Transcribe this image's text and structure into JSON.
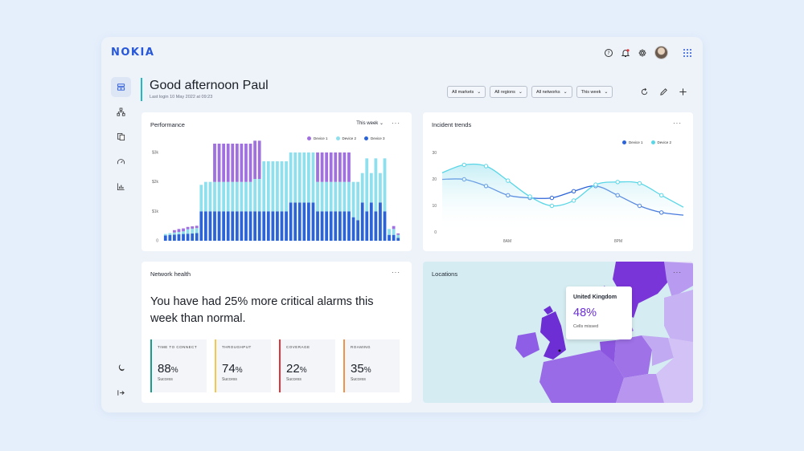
{
  "brand": {
    "logo_text": "NOKIA",
    "accent": "#2757d9"
  },
  "greeting": {
    "title": "Good afternoon Paul",
    "last_login": "Last login 10 May 2022 at 09:23"
  },
  "filters": [
    {
      "label": "All markets"
    },
    {
      "label": "All regions"
    },
    {
      "label": "All networks"
    },
    {
      "label": "This week"
    }
  ],
  "topbar_icons": [
    "help-icon",
    "notification-bell-icon",
    "settings-gear-icon",
    "user-avatar",
    "apps-grid-icon"
  ],
  "rail_icons": [
    "dashboard-icon",
    "topology-icon",
    "documents-icon",
    "speedometer-icon",
    "analytics-icon",
    "dark-mode-icon",
    "collapse-sidebar-icon"
  ],
  "performance": {
    "title": "Performance",
    "range_label": "This week",
    "more": "···",
    "legend": [
      {
        "label": "Device 1",
        "color": "#a070e0"
      },
      {
        "label": "Device 2",
        "color": "#8fe0ee"
      },
      {
        "label": "Device 3",
        "color": "#2b63d8"
      }
    ]
  },
  "incident": {
    "title": "Incident trends",
    "more": "···",
    "legend": [
      {
        "label": "Device 1",
        "color": "#2b63d8"
      },
      {
        "label": "Device 2",
        "color": "#5ad6e6"
      }
    ]
  },
  "network_health": {
    "title": "Network health",
    "more": "···",
    "message": "You have had 25% more critical alarms this week than normal.",
    "metrics": [
      {
        "label": "TIME TO CONNECT",
        "value": "88",
        "unit": "%",
        "sub": "Success",
        "color": "#1a9e8c"
      },
      {
        "label": "THROUGHPUT",
        "value": "74",
        "unit": "%",
        "sub": "Success",
        "color": "#f2c94c"
      },
      {
        "label": "COVERAGE",
        "value": "22",
        "unit": "%",
        "sub": "Success",
        "color": "#e0353a"
      },
      {
        "label": "ROAMING",
        "value": "35",
        "unit": "%",
        "sub": "Success",
        "color": "#f0924a"
      }
    ]
  },
  "locations": {
    "title": "Locations",
    "more": "···",
    "tooltip": {
      "country": "United Kingdom",
      "value": "48%",
      "sub": "Cells missed"
    }
  },
  "chart_data": [
    {
      "type": "bar",
      "title": "Performance",
      "stacked": true,
      "yticks": [
        "0",
        "$1k",
        "$2k",
        "$3k"
      ],
      "ylim": [
        0,
        3000
      ],
      "series": [
        {
          "name": "Device 3",
          "color": "#2b63d8",
          "values": [
            180,
            200,
            210,
            220,
            230,
            240,
            250,
            260,
            1000,
            1000,
            1000,
            1000,
            1000,
            1000,
            1000,
            1000,
            1000,
            1000,
            1000,
            1000,
            1000,
            1000,
            1000,
            1000,
            1000,
            1000,
            1000,
            1000,
            1300,
            1300,
            1300,
            1300,
            1300,
            1300,
            1000,
            1000,
            1000,
            1000,
            1000,
            1000,
            1000,
            1000,
            800,
            700,
            1300,
            1000,
            1300,
            1000,
            1300,
            1000,
            200,
            200,
            100
          ]
        },
        {
          "name": "Device 2",
          "color": "#8fe0ee",
          "values": [
            50,
            60,
            70,
            80,
            90,
            150,
            160,
            170,
            900,
            1000,
            1000,
            1000,
            1000,
            1000,
            1000,
            1000,
            1000,
            1000,
            1000,
            1000,
            1100,
            1100,
            1700,
            1700,
            1700,
            1700,
            1700,
            1700,
            1700,
            1700,
            1700,
            1700,
            1700,
            1700,
            1000,
            1000,
            1000,
            1000,
            1000,
            1000,
            1000,
            1000,
            1200,
            1300,
            1000,
            1800,
            1000,
            1800,
            1000,
            1800,
            200,
            200,
            100
          ]
        },
        {
          "name": "Device 1",
          "color": "#a070e0",
          "values": [
            0,
            0,
            80,
            100,
            100,
            80,
            80,
            80,
            0,
            0,
            0,
            1300,
            1300,
            1300,
            1300,
            1300,
            1300,
            1300,
            1300,
            1300,
            1300,
            1300,
            0,
            0,
            0,
            0,
            0,
            0,
            0,
            0,
            0,
            0,
            0,
            0,
            1000,
            1000,
            1000,
            1000,
            1000,
            1000,
            1000,
            1000,
            0,
            0,
            0,
            0,
            0,
            0,
            0,
            0,
            0,
            100,
            50
          ]
        }
      ]
    },
    {
      "type": "line",
      "title": "Incident trends",
      "xticks": [
        "8AM",
        "8PM"
      ],
      "yticks": [
        "0",
        "10",
        "20",
        "30"
      ],
      "ylim": [
        0,
        30
      ],
      "series": [
        {
          "name": "Device 1",
          "color": "#2b63d8",
          "values": [
            20,
            20,
            17.5,
            14,
            13,
            13,
            15.5,
            17.5,
            14,
            10,
            7.5,
            6.5
          ]
        },
        {
          "name": "Device 2",
          "color": "#5ad6e6",
          "values": [
            22.5,
            25.5,
            25,
            19.5,
            13.5,
            10,
            12,
            18,
            19,
            18.5,
            14,
            9.5
          ]
        }
      ]
    }
  ]
}
